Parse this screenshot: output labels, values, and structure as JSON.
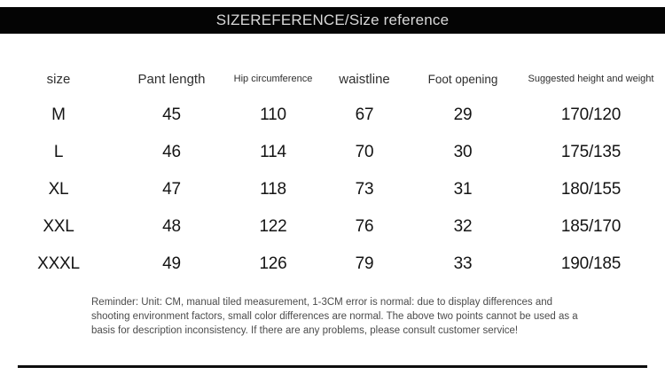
{
  "title_bar": {
    "title": "SIZEREFERENCE/Size reference",
    "bg_color": "#040404",
    "text_color": "#d9d9d9"
  },
  "size_table": {
    "columns": [
      {
        "label": "size"
      },
      {
        "label": "Pant length"
      },
      {
        "label": "Hip circumference"
      },
      {
        "label": "waistline"
      },
      {
        "label": "Foot opening"
      },
      {
        "label": "Suggested height and weight"
      }
    ],
    "rows": [
      {
        "size": "M",
        "pant_length": "45",
        "hip_circumference": "110",
        "waistline": "67",
        "foot_opening": "29",
        "suggested_height_weight": "170/120"
      },
      {
        "size": "L",
        "pant_length": "46",
        "hip_circumference": "114",
        "waistline": "70",
        "foot_opening": "30",
        "suggested_height_weight": "175/135"
      },
      {
        "size": "XL",
        "pant_length": "47",
        "hip_circumference": "118",
        "waistline": "73",
        "foot_opening": "31",
        "suggested_height_weight": "180/155"
      },
      {
        "size": "XXL",
        "pant_length": "48",
        "hip_circumference": "122",
        "waistline": "76",
        "foot_opening": "32",
        "suggested_height_weight": "185/170"
      },
      {
        "size": "XXXL",
        "pant_length": "49",
        "hip_circumference": "126",
        "waistline": "79",
        "foot_opening": "33",
        "suggested_height_weight": "190/185"
      }
    ],
    "row_field_order": [
      "size",
      "pant_length",
      "hip_circumference",
      "waistline",
      "foot_opening",
      "suggested_height_weight"
    ]
  },
  "reminder": {
    "text": "Reminder: Unit: CM, manual tiled measurement, 1-3CM error is normal: due to display differences and shooting environment factors, small color differences are normal. The above two points cannot be used as a basis for description inconsistency. If there are any problems, please consult customer service!"
  }
}
